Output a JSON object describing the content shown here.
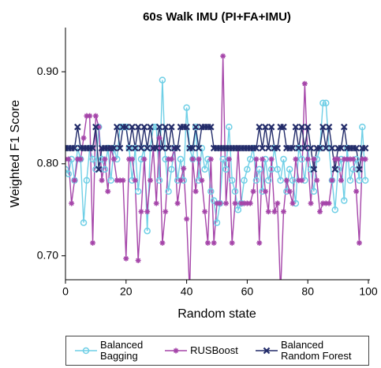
{
  "chart_data": {
    "type": "line",
    "title": "60s Walk IMU (PI+FA+IMU)",
    "x_label": "Random state",
    "y_label": "Weighted F1 Score",
    "x": [
      0,
      1,
      2,
      3,
      4,
      5,
      6,
      7,
      8,
      9,
      10,
      11,
      12,
      13,
      14,
      15,
      16,
      17,
      18,
      19,
      20,
      21,
      22,
      23,
      24,
      25,
      26,
      27,
      28,
      29,
      30,
      31,
      32,
      33,
      34,
      35,
      36,
      37,
      38,
      39,
      40,
      41,
      42,
      43,
      44,
      45,
      46,
      47,
      48,
      49,
      50,
      51,
      52,
      53,
      54,
      55,
      56,
      57,
      58,
      59,
      60,
      61,
      62,
      63,
      64,
      65,
      66,
      67,
      68,
      69,
      70,
      71,
      72,
      73,
      74,
      75,
      76,
      77,
      78,
      79,
      80,
      81,
      82,
      83,
      84,
      85,
      86,
      87,
      88,
      89,
      90,
      91,
      92,
      93,
      94,
      95,
      96,
      97,
      98,
      99
    ],
    "xlim": [
      0,
      100
    ],
    "xticks": [
      0,
      20,
      40,
      60,
      80,
      100
    ],
    "ylim": [
      0.674,
      0.948
    ],
    "yticks": [
      {
        "value": 0.7,
        "label": "0.70"
      },
      {
        "value": 0.8,
        "label": "0.80"
      },
      {
        "value": 0.9,
        "label": "0.90"
      }
    ],
    "series": [
      {
        "name": "Balanced Bagging",
        "color": "#6fcfe6",
        "marker": "circle",
        "values": [
          0.794,
          0.789,
          0.805,
          0.782,
          0.817,
          0.805,
          0.736,
          0.782,
          0.817,
          0.805,
          0.794,
          0.84,
          0.805,
          0.794,
          0.817,
          0.782,
          0.817,
          0.805,
          0.84,
          0.84,
          0.84,
          0.817,
          0.782,
          0.817,
          0.77,
          0.805,
          0.817,
          0.727,
          0.817,
          0.84,
          0.84,
          0.782,
          0.891,
          0.805,
          0.77,
          0.794,
          0.817,
          0.782,
          0.805,
          0.782,
          0.861,
          0.817,
          0.805,
          0.84,
          0.782,
          0.817,
          0.794,
          0.805,
          0.77,
          0.76,
          0.736,
          0.757,
          0.805,
          0.794,
          0.84,
          0.782,
          0.77,
          0.75,
          0.757,
          0.782,
          0.794,
          0.805,
          0.817,
          0.782,
          0.794,
          0.77,
          0.805,
          0.782,
          0.794,
          0.817,
          0.794,
          0.782,
          0.805,
          0.77,
          0.794,
          0.782,
          0.757,
          0.817,
          0.805,
          0.782,
          0.817,
          0.794,
          0.77,
          0.805,
          0.817,
          0.866,
          0.866,
          0.817,
          0.782,
          0.75,
          0.794,
          0.805,
          0.76,
          0.817,
          0.782,
          0.794,
          0.805,
          0.782,
          0.84,
          0.782
        ]
      },
      {
        "name": "RUSBoost",
        "color": "#a545a9",
        "marker": "asterisk",
        "values": [
          0.805,
          0.805,
          0.757,
          0.782,
          0.805,
          0.805,
          0.828,
          0.852,
          0.852,
          0.714,
          0.852,
          0.84,
          0.782,
          0.805,
          0.77,
          0.817,
          0.805,
          0.782,
          0.782,
          0.782,
          0.697,
          0.805,
          0.805,
          0.782,
          0.695,
          0.748,
          0.805,
          0.748,
          0.782,
          0.817,
          0.757,
          0.828,
          0.714,
          0.748,
          0.805,
          0.805,
          0.817,
          0.757,
          0.782,
          0.795,
          0.74,
          0.66,
          0.805,
          0.77,
          0.805,
          0.782,
          0.748,
          0.714,
          0.805,
          0.714,
          0.757,
          0.757,
          0.917,
          0.757,
          0.805,
          0.714,
          0.757,
          0.817,
          0.757,
          0.757,
          0.757,
          0.757,
          0.77,
          0.805,
          0.714,
          0.805,
          0.77,
          0.748,
          0.805,
          0.748,
          0.757,
          0.66,
          0.748,
          0.782,
          0.77,
          0.757,
          0.805,
          0.782,
          0.782,
          0.887,
          0.805,
          0.757,
          0.805,
          0.782,
          0.748,
          0.757,
          0.757,
          0.757,
          0.782,
          0.805,
          0.805,
          0.782,
          0.805,
          0.805,
          0.805,
          0.805,
          0.77,
          0.714,
          0.805,
          0.805
        ]
      },
      {
        "name": "Balanced Random Forest",
        "color": "#232c6a",
        "marker": "x",
        "values": [
          0.817,
          0.817,
          0.817,
          0.817,
          0.84,
          0.817,
          0.817,
          0.817,
          0.817,
          0.817,
          0.84,
          0.794,
          0.817,
          0.817,
          0.817,
          0.817,
          0.817,
          0.84,
          0.817,
          0.84,
          0.84,
          0.817,
          0.84,
          0.817,
          0.84,
          0.817,
          0.84,
          0.817,
          0.84,
          0.817,
          0.817,
          0.84,
          0.817,
          0.84,
          0.817,
          0.84,
          0.817,
          0.817,
          0.84,
          0.84,
          0.84,
          0.817,
          0.817,
          0.84,
          0.817,
          0.84,
          0.84,
          0.84,
          0.84,
          0.817,
          0.817,
          0.817,
          0.817,
          0.817,
          0.817,
          0.817,
          0.817,
          0.817,
          0.817,
          0.817,
          0.817,
          0.817,
          0.817,
          0.817,
          0.84,
          0.817,
          0.84,
          0.817,
          0.84,
          0.817,
          0.817,
          0.84,
          0.84,
          0.817,
          0.817,
          0.817,
          0.84,
          0.817,
          0.84,
          0.817,
          0.84,
          0.817,
          0.794,
          0.817,
          0.817,
          0.84,
          0.817,
          0.84,
          0.817,
          0.794,
          0.817,
          0.817,
          0.84,
          0.817,
          0.817,
          0.817,
          0.817,
          0.794,
          0.817,
          0.817
        ]
      }
    ]
  }
}
